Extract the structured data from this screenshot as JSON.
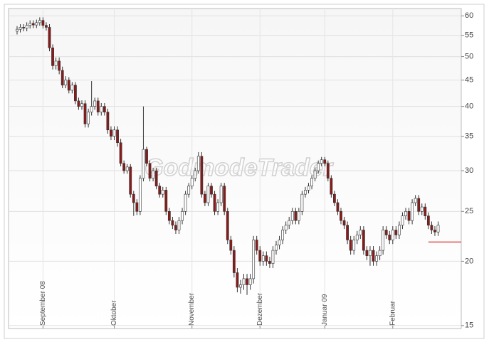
{
  "chart_data": {
    "type": "candlestick",
    "watermark": "GodmodeTrader",
    "log_scale": true,
    "grid": true,
    "up_color": "#ffffff",
    "down_color": "#8b1a1a",
    "edge_color": "#333333",
    "categories": [
      null,
      null,
      null,
      null,
      null,
      null,
      null,
      null,
      "September 08",
      null,
      null,
      null,
      null,
      null,
      null,
      null,
      null,
      null,
      null,
      null,
      null,
      null,
      null,
      null,
      null,
      null,
      null,
      null,
      null,
      null,
      "Oktober",
      null,
      null,
      null,
      null,
      null,
      null,
      null,
      null,
      null,
      null,
      null,
      null,
      null,
      null,
      null,
      null,
      null,
      null,
      null,
      null,
      null,
      null,
      null,
      "November",
      null,
      null,
      null,
      null,
      null,
      null,
      null,
      null,
      null,
      null,
      null,
      null,
      null,
      null,
      null,
      null,
      null,
      null,
      null,
      null,
      "Dezember",
      null,
      null,
      null,
      null,
      null,
      null,
      null,
      null,
      null,
      null,
      null,
      null,
      null,
      null,
      null,
      null,
      null,
      null,
      null,
      "Januar 09",
      null,
      null,
      null,
      null,
      null,
      null,
      null,
      null,
      null,
      null,
      null,
      null,
      null,
      null,
      null,
      null,
      null,
      null,
      null,
      null,
      "Februar",
      null,
      null,
      null,
      null,
      null,
      null,
      null,
      null,
      null,
      null,
      null,
      null,
      null,
      null
    ],
    "open": [
      56,
      56.5,
      57,
      56.8,
      57.5,
      58,
      57.6,
      58.2,
      58.8,
      57.5,
      57,
      52,
      48,
      49,
      47,
      44,
      45,
      43,
      44,
      41,
      40,
      40.5,
      37,
      39,
      40,
      41,
      39,
      40,
      39,
      36,
      35,
      36,
      34,
      31,
      30,
      30.5,
      27,
      26,
      25,
      29,
      33,
      31,
      29,
      30,
      28,
      27,
      27.5,
      25,
      24,
      23.5,
      23,
      24,
      25,
      27,
      28,
      29,
      30,
      32,
      27,
      26,
      28,
      27,
      25,
      26,
      28,
      25,
      22,
      21,
      19,
      17.8,
      18,
      18.5,
      18,
      18.5,
      22,
      21,
      20,
      20.5,
      20,
      19.8,
      21,
      21.5,
      22,
      23,
      23.5,
      24,
      25,
      24,
      25,
      27,
      27.5,
      28,
      29,
      30,
      31,
      31.5,
      31,
      29,
      27,
      26,
      25,
      24,
      23.5,
      22,
      21,
      22,
      22.5,
      23,
      21,
      20.5,
      21,
      20,
      20.5,
      21,
      23,
      22.5,
      22,
      23,
      22.5,
      23.5,
      24.5,
      25,
      24,
      26,
      26.5,
      25,
      25.5,
      24.5,
      23.5,
      23,
      22.8
    ],
    "high": [
      57.3,
      57.8,
      57.8,
      58.3,
      58.8,
      58.8,
      59,
      59.6,
      59.6,
      58.3,
      57.8,
      52.8,
      49.8,
      49.8,
      47.8,
      45.8,
      45.6,
      44.6,
      44.6,
      41.6,
      41.1,
      41.1,
      39.6,
      44.8,
      41.6,
      41.6,
      40.6,
      40.6,
      39.6,
      36.6,
      36.6,
      36.6,
      34.6,
      31.4,
      30.9,
      30.9,
      27.4,
      26.4,
      29.4,
      40,
      33.4,
      31.4,
      30.4,
      30.4,
      28.4,
      27.9,
      27.9,
      25.4,
      24.4,
      23.9,
      24.4,
      25.4,
      27.4,
      28.4,
      29.4,
      30.4,
      32.6,
      32.6,
      27.4,
      28.4,
      28.4,
      27.4,
      26.4,
      28.4,
      28.4,
      25.4,
      22.4,
      21.4,
      19.4,
      18.4,
      18.9,
      18.9,
      18.9,
      22.4,
      22.4,
      21.4,
      20.9,
      20.9,
      20.4,
      21.4,
      21.9,
      22.4,
      23.4,
      23.9,
      24.4,
      25.4,
      25.4,
      25.4,
      27.4,
      27.9,
      28.4,
      29.4,
      30.4,
      31.4,
      31.9,
      31.9,
      31.4,
      29.4,
      27.4,
      26.4,
      25.4,
      24.4,
      23.9,
      22.4,
      22.4,
      22.9,
      23.4,
      23.4,
      21.4,
      21.4,
      21.4,
      20.9,
      21.4,
      23.4,
      23.4,
      22.9,
      23.4,
      23.4,
      23.9,
      24.9,
      25.4,
      25.4,
      26.4,
      26.9,
      26.9,
      25.9,
      25.9,
      24.9,
      23.9,
      23.4,
      23.9
    ],
    "low": [
      55.2,
      55.7,
      56,
      56,
      56.7,
      56.8,
      56.8,
      57.4,
      56.7,
      56.2,
      51.2,
      47.2,
      47.2,
      46.2,
      43.4,
      43.4,
      42.4,
      42.4,
      40.4,
      39.4,
      39.4,
      36.4,
      36.4,
      38.4,
      39.4,
      38.4,
      38.4,
      38.4,
      35.4,
      34.4,
      34.4,
      33.4,
      30.6,
      29.6,
      29.6,
      26.6,
      24.5,
      24.6,
      24.6,
      28.6,
      30.6,
      28.6,
      28.6,
      27.6,
      26.6,
      26.6,
      24.6,
      23.6,
      23.1,
      22.6,
      22.6,
      23.6,
      24.6,
      26.6,
      27.6,
      28.6,
      29.6,
      26.6,
      25.6,
      25.6,
      26.6,
      24.6,
      24.6,
      25.6,
      24.6,
      21.6,
      20.6,
      18.6,
      17.4,
      17.3,
      17.6,
      17.2,
      17.6,
      18.1,
      20.6,
      19.6,
      19.6,
      19.6,
      19.4,
      19.4,
      20.6,
      21.1,
      21.6,
      22.6,
      23.1,
      23.6,
      23.6,
      23.6,
      24.6,
      26.6,
      27.1,
      27.6,
      28.6,
      29.6,
      30.6,
      30.6,
      28.6,
      26.6,
      25.6,
      24.6,
      23.6,
      23.1,
      21.6,
      20.6,
      20.6,
      21.6,
      22.1,
      20.6,
      20.1,
      19.6,
      19.6,
      19.6,
      20.1,
      20.6,
      22.1,
      21.6,
      21.6,
      22.1,
      22.1,
      23.1,
      24.1,
      23.6,
      23.6,
      25.6,
      24.6,
      24.6,
      24.1,
      23.1,
      22.6,
      22.4,
      22.4
    ],
    "close": [
      56.5,
      57,
      56.8,
      57.5,
      58,
      57.6,
      58.2,
      58.8,
      57.5,
      57,
      52,
      48,
      49,
      47,
      44,
      45,
      43,
      44,
      41,
      40,
      40.5,
      37,
      39,
      40,
      41,
      39,
      40,
      39,
      36,
      35,
      36,
      34,
      31,
      30,
      30.5,
      27,
      26,
      25,
      29,
      33,
      31,
      29,
      30,
      28,
      27,
      27.5,
      25,
      24,
      23.5,
      23,
      24,
      25,
      27,
      28,
      29,
      30,
      32,
      27,
      26,
      28,
      27,
      25,
      26,
      28,
      25,
      22,
      21,
      19,
      17.8,
      18,
      18.5,
      18,
      18.5,
      22,
      21,
      20,
      20.5,
      20,
      19.8,
      21,
      21.5,
      22,
      23,
      23.5,
      24,
      25,
      24,
      25,
      27,
      27.5,
      28,
      29,
      30,
      31,
      31.5,
      31,
      29,
      27,
      26,
      25,
      24,
      23.5,
      22,
      21,
      22,
      22.5,
      23,
      21,
      20.5,
      21,
      20,
      20.5,
      21,
      23,
      22.5,
      22,
      23,
      22.5,
      23.5,
      24.5,
      25,
      24,
      26,
      26.5,
      25,
      25.5,
      24.5,
      23.5,
      23,
      22.8,
      23.5
    ],
    "reference_line": {
      "value": 21.8,
      "color": "#e05555"
    },
    "ylim": [
      14.8,
      62
    ],
    "yticks": [
      15,
      20,
      25,
      30,
      35,
      40,
      45,
      50,
      55,
      60
    ]
  }
}
